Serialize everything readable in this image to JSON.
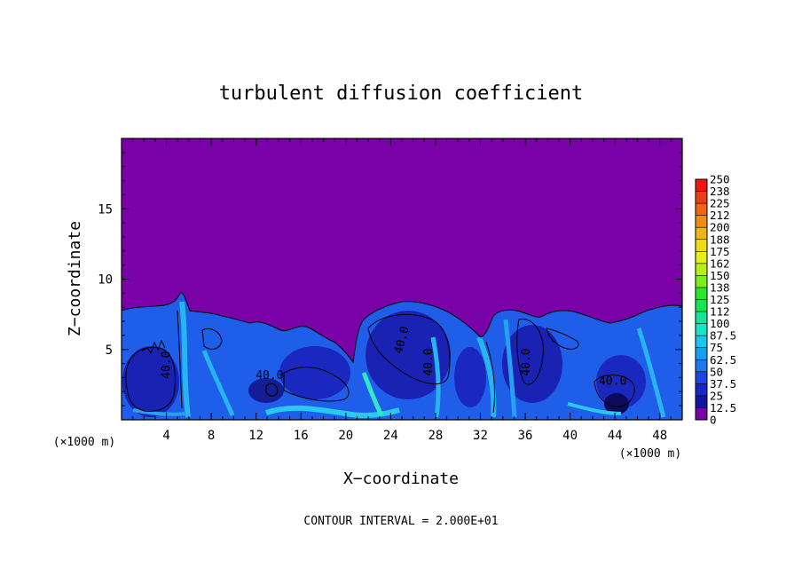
{
  "chart_data": {
    "type": "heatmap",
    "title": "turbulent diffusion coefficient",
    "xlabel": "X−coordinate",
    "ylabel": "Z−coordinate",
    "x_unit": "(×1000 m)",
    "y_unit": "(×1000 m)",
    "xlim": [
      0,
      50
    ],
    "ylim": [
      0,
      20
    ],
    "x_ticks": [
      4,
      8,
      12,
      16,
      20,
      24,
      28,
      32,
      36,
      40,
      44,
      48
    ],
    "x_tick_labels": [
      "4",
      "8",
      "12",
      "16",
      "20",
      "24",
      "28",
      "32",
      "36",
      "40",
      "44",
      "48"
    ],
    "y_ticks": [
      5,
      10,
      15
    ],
    "y_tick_labels": [
      "5",
      "10",
      "15"
    ],
    "grid": false,
    "colorbar": {
      "placement": "right",
      "labels": [
        "0",
        "12.5",
        "25",
        "37.5",
        "50",
        "62.5",
        "75",
        "87.5",
        "100",
        "112",
        "125",
        "138",
        "150",
        "162",
        "175",
        "188",
        "200",
        "212",
        "225",
        "238",
        "250"
      ],
      "colors": [
        "#7a00a8",
        "#1414a0",
        "#1428c8",
        "#1e46e6",
        "#1e78f0",
        "#14a0f0",
        "#14c8f0",
        "#14e6c8",
        "#14e696",
        "#14e650",
        "#28e628",
        "#78f014",
        "#b4f014",
        "#e6f014",
        "#f0dc14",
        "#f0b414",
        "#f08c14",
        "#f06414",
        "#f03c14",
        "#f01414",
        "#f08282"
      ]
    },
    "contour_labels": [
      {
        "text": "40.0",
        "x": 4.3,
        "z": 3.9,
        "rotate": -90
      },
      {
        "text": "40.0",
        "x": 13.2,
        "z": 2.9,
        "rotate": 0
      },
      {
        "text": "40.0",
        "x": 25.3,
        "z": 5.6,
        "rotate": -75
      },
      {
        "text": "40.0",
        "x": 27.7,
        "z": 4.1,
        "rotate": -90
      },
      {
        "text": "40.0",
        "x": 36.4,
        "z": 4.1,
        "rotate": -90
      },
      {
        "text": "40.0",
        "x": 43.8,
        "z": 2.5,
        "rotate": 0
      }
    ],
    "contour_interval": "CONTOUR INTERVAL = 2.000E+01"
  }
}
